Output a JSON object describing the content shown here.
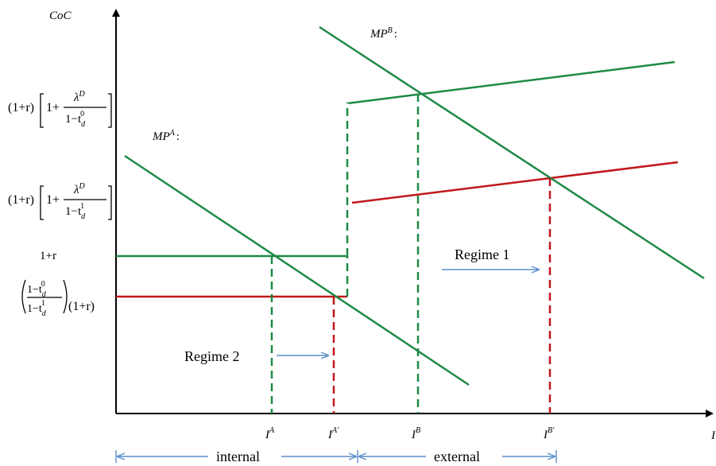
{
  "axes": {
    "y_label": "CoC",
    "x_label": "I"
  },
  "y_labels": {
    "cost_top": {
      "lhs": "(1+r)",
      "frac_num": "λ",
      "frac_num_sup": "D",
      "frac_den": "1−t",
      "frac_den_sub": "d",
      "frac_den_sup": "0",
      "one_plus": "1+"
    },
    "cost_mid": {
      "lhs": "(1+r)",
      "frac_num": "λ",
      "frac_num_sup": "D",
      "frac_den": "1−t",
      "frac_den_sub": "d",
      "frac_den_sup": "1",
      "one_plus": "1+"
    },
    "one_plus_r": "1+r",
    "ratio": {
      "num": "1−t",
      "num_sub": "d",
      "num_sup": "0",
      "den": "1−t",
      "den_sub": "d",
      "den_sup": "1",
      "rhs": "(1+r)"
    }
  },
  "curves": {
    "mp_a": {
      "base": "MP",
      "sup": "A",
      "suffix": ":"
    },
    "mp_b": {
      "base": "MP",
      "sup": "B",
      "suffix": ":"
    }
  },
  "x_ticks": [
    {
      "base": "I",
      "sup": "A"
    },
    {
      "base": "I",
      "sup": "A'"
    },
    {
      "base": "I",
      "sup": "B"
    },
    {
      "base": "I",
      "sup": "B'"
    }
  ],
  "regimes": {
    "regime1": "Regime 1",
    "regime2": "Regime 2"
  },
  "financing": {
    "internal": "internal",
    "external": "external"
  },
  "colors": {
    "green": "#1e8a45",
    "red": "#c0171b",
    "blue": "#5b8ec9",
    "axis": "#000000"
  }
}
